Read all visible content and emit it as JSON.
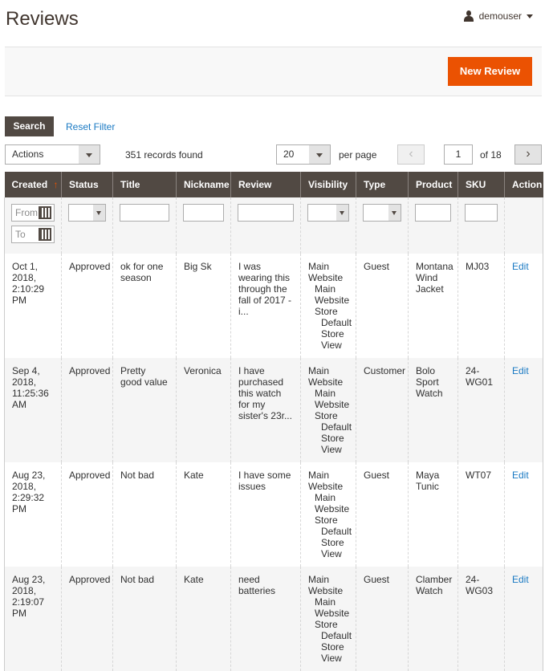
{
  "page": {
    "title": "Reviews",
    "user": "demouser",
    "new_review": "New Review"
  },
  "toolbar": {
    "search": "Search",
    "reset_filter": "Reset Filter",
    "actions": "Actions",
    "records": "351 records found",
    "per_page_value": "20",
    "per_page_label": "per page",
    "page": "1",
    "of_pages": "of 18",
    "prev": "‹",
    "next": "›"
  },
  "filters": {
    "from": "From",
    "to": "To"
  },
  "columns": [
    "Created",
    "Status",
    "Title",
    "Nickname",
    "Review",
    "Visibility",
    "Type",
    "Product",
    "SKU",
    "Action"
  ],
  "sort_indicator": "↑",
  "rows": [
    {
      "created": "Oct 1, 2018, 2:10:29 PM",
      "status": "Approved",
      "title": "ok for one season",
      "nickname": "Big Sk",
      "review": "I was wearing this through the fall of 2017 - i...",
      "vis1": "Main Website",
      "vis2": "Main Website Store",
      "vis3": "Default Store View",
      "type": "Guest",
      "product": "Montana Wind Jacket",
      "sku": "MJ03",
      "action": "Edit"
    },
    {
      "created": "Sep 4, 2018, 11:25:36 AM",
      "status": "Approved",
      "title": "Pretty good value",
      "nickname": "Veronica",
      "review": "I have purchased this watch for my sister's 23r...",
      "vis1": "Main Website",
      "vis2": "Main Website Store",
      "vis3": "Default Store View",
      "type": "Customer",
      "product": "Bolo Sport Watch",
      "sku": "24-WG01",
      "action": "Edit"
    },
    {
      "created": "Aug 23, 2018, 2:29:32 PM",
      "status": "Approved",
      "title": "Not bad",
      "nickname": "Kate",
      "review": "I have some issues",
      "vis1": "Main Website",
      "vis2": "Main Website Store",
      "vis3": "Default Store View",
      "type": "Guest",
      "product": "Maya Tunic",
      "sku": "WT07",
      "action": "Edit"
    },
    {
      "created": "Aug 23, 2018, 2:19:07 PM",
      "status": "Approved",
      "title": "Not bad",
      "nickname": "Kate",
      "review": "need batteries",
      "vis1": "Main Website",
      "vis2": "Main Website Store",
      "vis3": "Default Store View",
      "type": "Guest",
      "product": "Clamber Watch",
      "sku": "24-WG03",
      "action": "Edit"
    }
  ]
}
